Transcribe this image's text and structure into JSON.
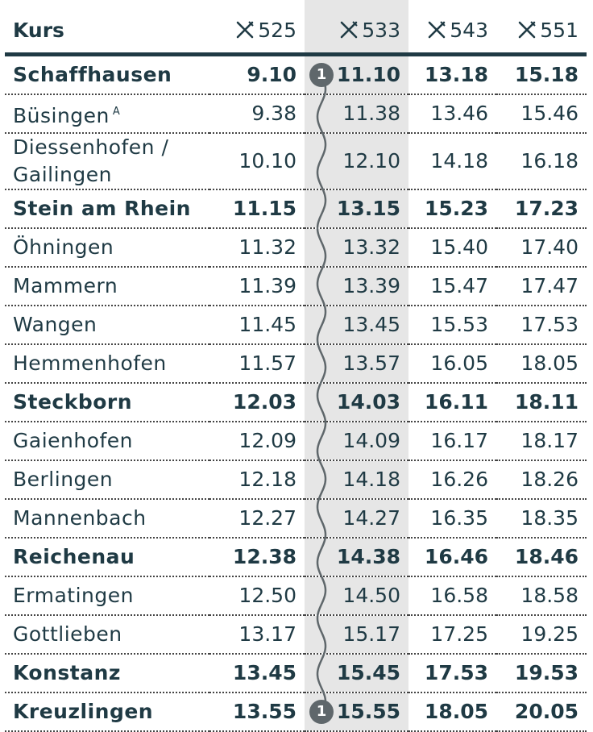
{
  "table": {
    "header": [
      "Kurs",
      "525",
      "533",
      "543",
      "551"
    ],
    "highlight_column": 2,
    "rows": [
      {
        "cells": [
          "Schaffhausen",
          "9.10",
          "11.10",
          "13.18",
          "15.18"
        ],
        "bold": true,
        "marker": "1"
      },
      {
        "cells": [
          "Büsingen",
          "9.38",
          "11.38",
          "13.46",
          "15.46"
        ],
        "note": "A"
      },
      {
        "cells": [
          "Diessenhofen / Gailingen",
          "10.10",
          "12.10",
          "14.18",
          "16.18"
        ]
      },
      {
        "cells": [
          "Stein am Rhein",
          "11.15",
          "13.15",
          "15.23",
          "17.23"
        ],
        "bold": true
      },
      {
        "cells": [
          "Öhningen",
          "11.32",
          "13.32",
          "15.40",
          "17.40"
        ]
      },
      {
        "cells": [
          "Mammern",
          "11.39",
          "13.39",
          "15.47",
          "17.47"
        ]
      },
      {
        "cells": [
          "Wangen",
          "11.45",
          "13.45",
          "15.53",
          "17.53"
        ]
      },
      {
        "cells": [
          "Hemmenhofen",
          "11.57",
          "13.57",
          "16.05",
          "18.05"
        ]
      },
      {
        "cells": [
          "Steckborn",
          "12.03",
          "14.03",
          "16.11",
          "18.11"
        ],
        "bold": true
      },
      {
        "cells": [
          "Gaienhofen",
          "12.09",
          "14.09",
          "16.17",
          "18.17"
        ]
      },
      {
        "cells": [
          "Berlingen",
          "12.18",
          "14.18",
          "16.26",
          "18.26"
        ]
      },
      {
        "cells": [
          "Mannenbach",
          "12.27",
          "14.27",
          "16.35",
          "18.35"
        ]
      },
      {
        "cells": [
          "Reichenau",
          "12.38",
          "14.38",
          "16.46",
          "18.46"
        ],
        "bold": true
      },
      {
        "cells": [
          "Ermatingen",
          "12.50",
          "14.50",
          "16.58",
          "18.58"
        ]
      },
      {
        "cells": [
          "Gottlieben",
          "13.17",
          "15.17",
          "17.25",
          "19.25"
        ]
      },
      {
        "cells": [
          "Konstanz",
          "13.45",
          "15.45",
          "17.53",
          "19.53"
        ],
        "bold": true
      },
      {
        "cells": [
          "Kreuzlingen",
          "13.55",
          "15.55",
          "18.05",
          "20.05"
        ],
        "bold": true,
        "marker": "1"
      }
    ]
  }
}
